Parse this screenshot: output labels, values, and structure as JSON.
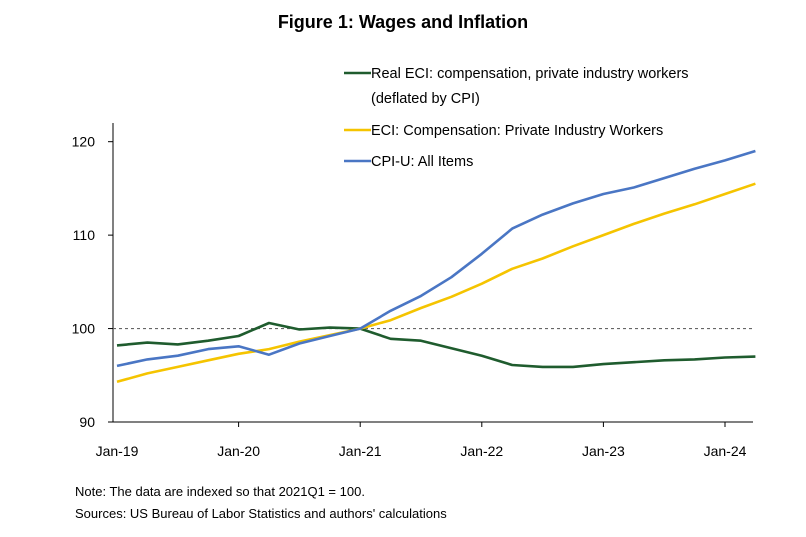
{
  "chart_data": {
    "type": "line",
    "title": "Figure 1: Wages and Inflation",
    "x_ticks": [
      "Jan-19",
      "Jan-20",
      "Jan-21",
      "Jan-22",
      "Jan-23",
      "Jan-24"
    ],
    "x_quarters": [
      "2019Q1",
      "2019Q2",
      "2019Q3",
      "2019Q4",
      "2020Q1",
      "2020Q2",
      "2020Q3",
      "2020Q4",
      "2021Q1",
      "2021Q2",
      "2021Q3",
      "2021Q4",
      "2022Q1",
      "2022Q2",
      "2022Q3",
      "2022Q4",
      "2023Q1",
      "2023Q2",
      "2023Q3",
      "2023Q4",
      "2024Q1",
      "2024Q2"
    ],
    "ylim": [
      90,
      122
    ],
    "y_ticks": [
      90,
      100,
      110,
      120
    ],
    "reference_line": 100,
    "legend_position": "top-right",
    "series": [
      {
        "name": "Real ECI: compensation, private industry workers",
        "name_line2": "(deflated by CPI)",
        "color": "#1f5c2e",
        "values": [
          98.2,
          98.5,
          98.3,
          98.7,
          99.2,
          100.6,
          99.9,
          100.1,
          100.0,
          98.9,
          98.7,
          97.9,
          97.1,
          96.1,
          95.9,
          95.9,
          96.2,
          96.4,
          96.6,
          96.7,
          96.9,
          97.0
        ]
      },
      {
        "name": "ECI: Compensation: Private Industry Workers",
        "color": "#f5c400",
        "values": [
          94.3,
          95.2,
          95.9,
          96.6,
          97.3,
          97.8,
          98.6,
          99.3,
          100.0,
          100.9,
          102.2,
          103.4,
          104.8,
          106.4,
          107.5,
          108.8,
          110.0,
          111.2,
          112.3,
          113.3,
          114.4,
          115.5
        ]
      },
      {
        "name": "CPI-U: All Items",
        "color": "#4a76c4",
        "values": [
          96.0,
          96.7,
          97.1,
          97.8,
          98.1,
          97.2,
          98.4,
          99.2,
          100.0,
          101.9,
          103.5,
          105.5,
          108.0,
          110.7,
          112.2,
          113.4,
          114.4,
          115.1,
          116.1,
          117.1,
          118.0,
          119.0
        ]
      }
    ]
  },
  "notes": {
    "note": "Note: The data are indexed so that 2021Q1 = 100.",
    "sources": "Sources: US Bureau of Labor Statistics and authors' calculations"
  }
}
